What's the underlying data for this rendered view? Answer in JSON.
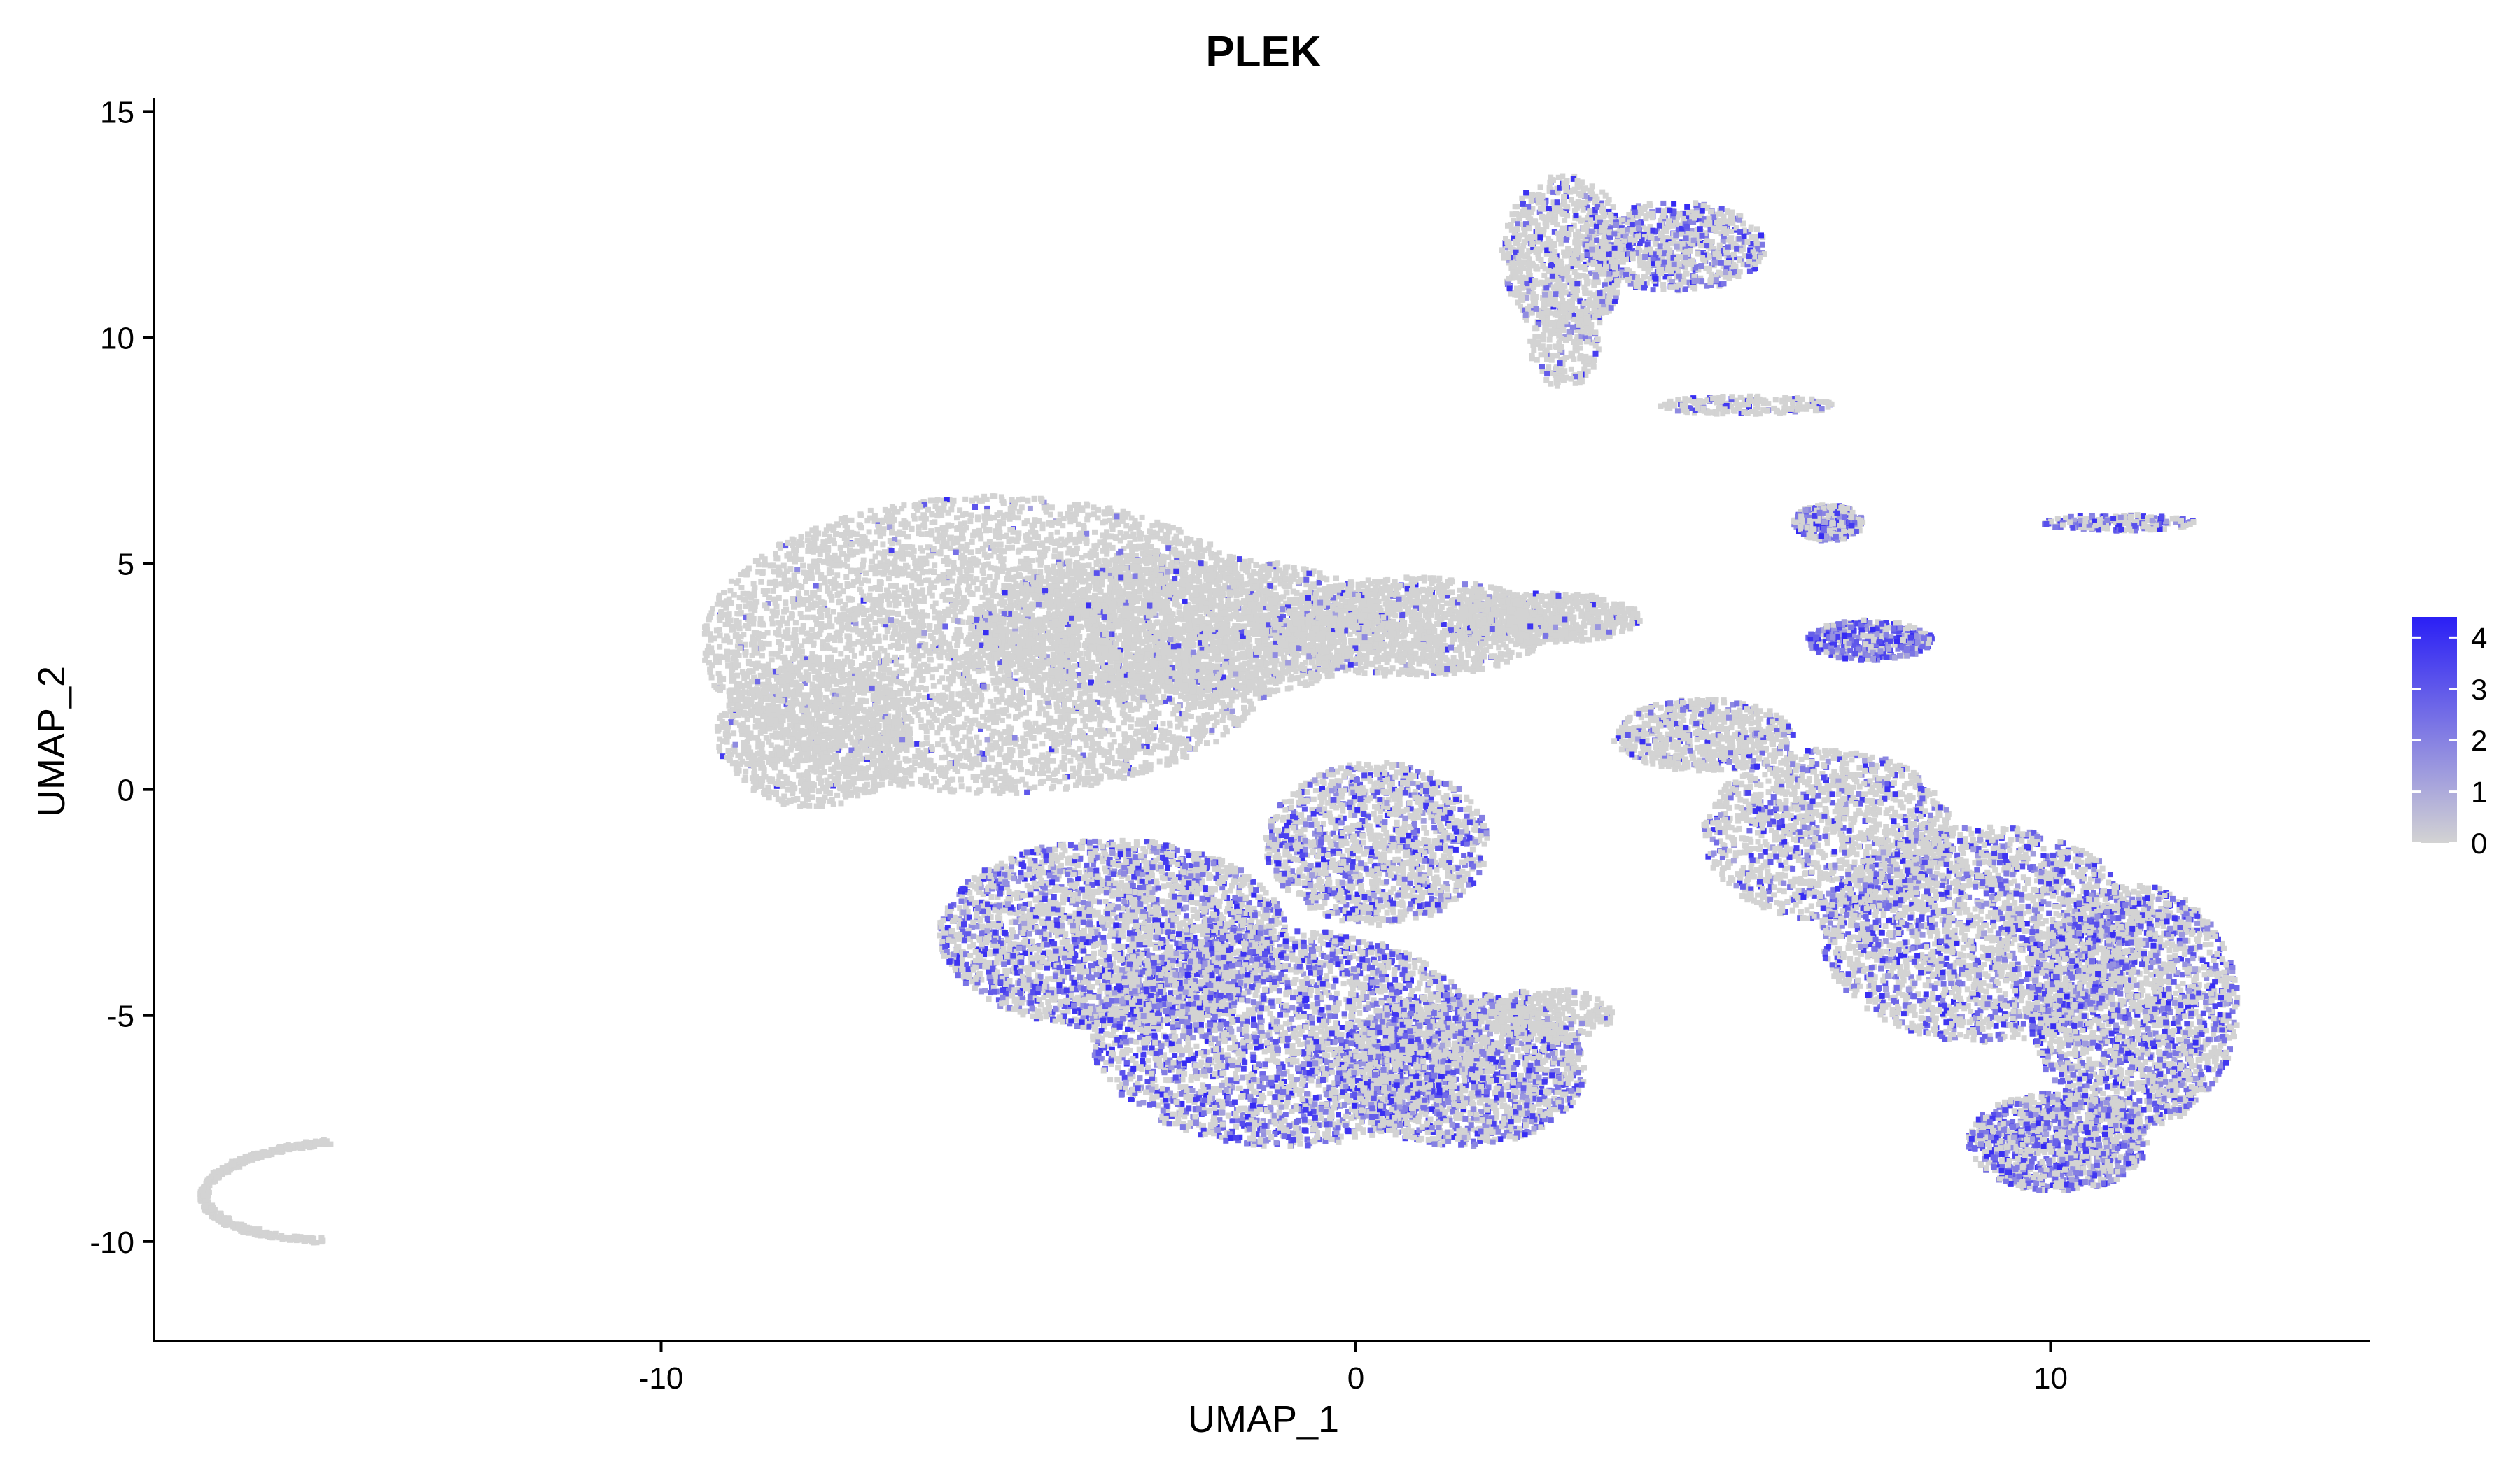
{
  "chart_data": {
    "type": "scatter",
    "title": "PLEK",
    "xlabel": "UMAP_1",
    "ylabel": "UMAP_2",
    "xlim": [
      -17.3,
      14.6
    ],
    "ylim": [
      -12.2,
      15.3
    ],
    "x_ticks": [
      -10,
      0,
      10
    ],
    "x_tick_labels": [
      "-10",
      "0",
      "10"
    ],
    "y_ticks": [
      -10,
      -5,
      0,
      5,
      10,
      15
    ],
    "y_tick_labels": [
      "-10",
      "-5",
      "0",
      "5",
      "10",
      "15"
    ],
    "grid": false,
    "legend": {
      "placement": "right",
      "scale": "continuous",
      "low_color": "#d3d3d3",
      "high_color": "#2a1ff5",
      "range": [
        0,
        4.4
      ],
      "ticks": [
        0,
        1,
        2,
        3,
        4
      ],
      "tick_labels": [
        "0",
        "1",
        "2",
        "3",
        "4"
      ]
    },
    "clusters": [
      {
        "region": "large left mass, upper grey part",
        "center": [
          -5.2,
          3.0
        ],
        "expression": "low"
      },
      {
        "region": "large left mass, lower purple part",
        "center": [
          -2.0,
          -5.0
        ],
        "expression": "moderate"
      },
      {
        "region": "right lobe",
        "center": [
          9.5,
          -4.0
        ],
        "expression": "moderate"
      },
      {
        "region": "top cluster",
        "center": [
          3.5,
          11.5
        ],
        "expression": "low-moderate"
      },
      {
        "region": "curved arc near bottom-left",
        "center": [
          -14.8,
          -9.4
        ],
        "expression": "none"
      },
      {
        "region": "small cluster near (7.8, 3)",
        "center": [
          7.5,
          3.3
        ],
        "expression": "high"
      },
      {
        "region": "small cluster near (7, 6)",
        "center": [
          6.9,
          6.0
        ],
        "expression": "moderate"
      },
      {
        "region": "thin strand near (11, 6)",
        "center": [
          11.0,
          5.9
        ],
        "expression": "moderate"
      }
    ]
  }
}
